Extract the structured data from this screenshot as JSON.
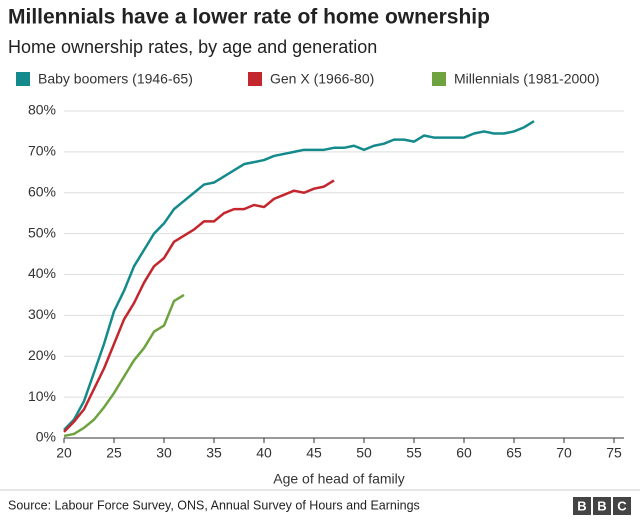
{
  "chart_data": {
    "type": "line",
    "title": "Millennials have a lower rate of home ownership",
    "subtitle": "Home ownership rates, by age and generation",
    "x_label": "Age of head of family",
    "source": "Source: Labour Force Survey, ONS, Annual Survey of Hours and Earnings",
    "logo": [
      "B",
      "B",
      "C"
    ],
    "x": [
      20,
      21,
      22,
      23,
      24,
      25,
      26,
      27,
      28,
      29,
      30,
      31,
      32,
      33,
      34,
      35,
      36,
      37,
      38,
      39,
      40,
      41,
      42,
      43,
      44,
      45,
      46,
      47,
      48,
      49,
      50,
      51,
      52,
      53,
      54,
      55,
      56,
      57,
      58,
      59,
      60,
      61,
      62,
      63,
      64,
      65,
      66,
      67
    ],
    "series": [
      {
        "name": "Baby boomers (1946-65)",
        "color": "#148a8c",
        "values": [
          2,
          4.5,
          9,
          16,
          23,
          31,
          36,
          42,
          46,
          50,
          52.5,
          56,
          58,
          60,
          62,
          62.5,
          64,
          65.5,
          67,
          67.5,
          68,
          69,
          69.5,
          70,
          70.5,
          70.5,
          70.5,
          71,
          71,
          71.5,
          70.5,
          71.5,
          72,
          73,
          73,
          72.5,
          74,
          73.5,
          73.5,
          73.5,
          73.5,
          74.5,
          75,
          74.5,
          74.5,
          75,
          76,
          77.5
        ]
      },
      {
        "name": "Gen X (1966-80)",
        "color": "#c4262e",
        "values": [
          1.5,
          4,
          7,
          12,
          17,
          23,
          29,
          33,
          38,
          42,
          44,
          48,
          49.5,
          51,
          53,
          53,
          55,
          56,
          56,
          57,
          56.5,
          58.5,
          59.5,
          60.5,
          60,
          61,
          61.5,
          63,
          null,
          null,
          null,
          null,
          null,
          null,
          null,
          null,
          null,
          null,
          null,
          null,
          null,
          null,
          null,
          null,
          null,
          null,
          null,
          null
        ]
      },
      {
        "name": "Millennials (1981-2000)",
        "color": "#6ea33f",
        "values": [
          0.5,
          1,
          2.5,
          4.5,
          7.5,
          11,
          15,
          19,
          22,
          26,
          27.5,
          33.5,
          35,
          null,
          null,
          null,
          null,
          null,
          null,
          null,
          null,
          null,
          null,
          null,
          null,
          null,
          null,
          null,
          null,
          null,
          null,
          null,
          null,
          null,
          null,
          null,
          null,
          null,
          null,
          null,
          null,
          null,
          null,
          null,
          null,
          null,
          null,
          null
        ]
      }
    ],
    "xlim": [
      20,
      75
    ],
    "xticks": [
      20,
      25,
      30,
      35,
      40,
      45,
      50,
      55,
      60,
      65,
      70,
      75
    ],
    "ylim": [
      0,
      80
    ],
    "yticks": [
      {
        "value": 0,
        "label": "0%"
      },
      {
        "value": 10,
        "label": "10%"
      },
      {
        "value": 20,
        "label": "20%"
      },
      {
        "value": 30,
        "label": "30%"
      },
      {
        "value": 40,
        "label": "40%"
      },
      {
        "value": 50,
        "label": "50%"
      },
      {
        "value": 60,
        "label": "60%"
      },
      {
        "value": 70,
        "label": "70%"
      },
      {
        "value": 80,
        "label": "80%"
      }
    ],
    "grid": true
  }
}
